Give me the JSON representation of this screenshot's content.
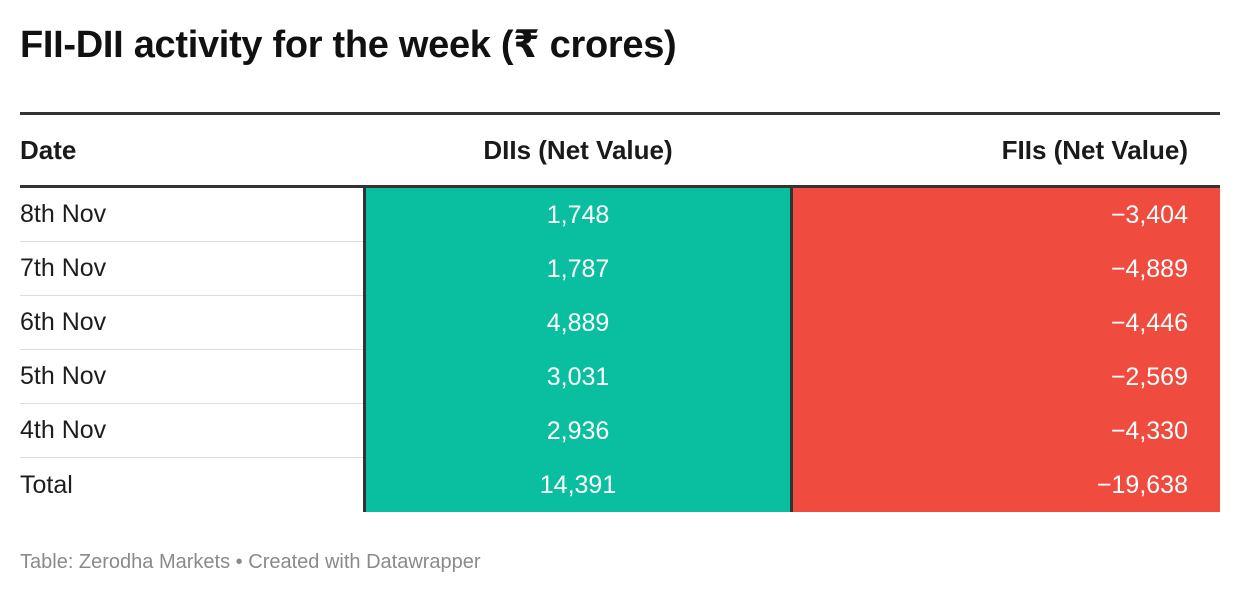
{
  "title": "FII-DII activity for the week (₹ crores)",
  "colors": {
    "dii_fill": "#0abf9f",
    "fii_fill": "#ef4b3e",
    "rule": "#333333",
    "source_text": "#8a8a8a"
  },
  "table": {
    "headers": {
      "date": "Date",
      "dii": "DIIs (Net Value)",
      "fii": "FIIs (Net Value)"
    },
    "rows": [
      {
        "date": "8th Nov",
        "dii": "1,748",
        "fii": "−3,404"
      },
      {
        "date": "7th Nov",
        "dii": "1,787",
        "fii": "−4,889"
      },
      {
        "date": "6th Nov",
        "dii": "4,889",
        "fii": "−4,446"
      },
      {
        "date": "5th Nov",
        "dii": "3,031",
        "fii": "−2,569"
      },
      {
        "date": "4th Nov",
        "dii": "2,936",
        "fii": "−4,330"
      },
      {
        "date": "Total",
        "dii": "14,391",
        "fii": "−19,638"
      }
    ]
  },
  "footer": {
    "source": "Table: Zerodha Markets",
    "separator": "•",
    "credit": "Created with Datawrapper"
  }
}
